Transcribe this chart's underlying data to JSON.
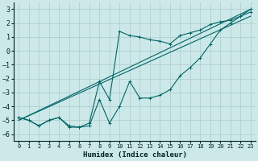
{
  "xlabel": "Humidex (Indice chaleur)",
  "xlim": [
    -0.5,
    23.5
  ],
  "ylim": [
    -6.5,
    3.5
  ],
  "yticks": [
    -6,
    -5,
    -4,
    -3,
    -2,
    -1,
    0,
    1,
    2,
    3
  ],
  "xticks": [
    0,
    1,
    2,
    3,
    4,
    5,
    6,
    7,
    8,
    9,
    10,
    11,
    12,
    13,
    14,
    15,
    16,
    17,
    18,
    19,
    20,
    21,
    22,
    23
  ],
  "bg_color": "#cce8e8",
  "grid_color": "#aacccc",
  "line_color": "#006666",
  "line1_x": [
    0,
    1,
    2,
    3,
    4,
    5,
    6,
    7,
    8,
    9,
    10,
    11,
    12,
    13,
    14,
    15,
    16,
    17,
    18,
    19,
    20,
    21,
    22,
    23
  ],
  "line1_y": [
    -4.8,
    -5.0,
    -5.4,
    -5.0,
    -4.8,
    -5.5,
    -5.5,
    -5.2,
    -2.2,
    -3.5,
    1.4,
    1.1,
    1.0,
    0.8,
    0.7,
    0.5,
    1.1,
    1.3,
    1.5,
    1.9,
    2.1,
    2.2,
    2.5,
    2.8
  ],
  "line2_x": [
    0,
    1,
    2,
    3,
    4,
    5,
    6,
    7,
    8,
    9,
    10,
    11,
    12,
    13,
    14,
    15,
    16,
    17,
    18,
    19,
    20,
    21,
    22,
    23
  ],
  "line2_y": [
    -4.8,
    -5.0,
    -5.4,
    -5.0,
    -4.8,
    -5.4,
    -5.5,
    -5.4,
    -3.5,
    -5.2,
    -4.0,
    -2.2,
    -3.4,
    -3.4,
    -3.2,
    -2.8,
    -1.8,
    -1.2,
    -0.5,
    0.5,
    1.5,
    2.0,
    2.5,
    3.0
  ],
  "line3_x": [
    0,
    23
  ],
  "line3_y": [
    -5.0,
    2.5
  ],
  "line4_x": [
    0,
    23
  ],
  "line4_y": [
    -5.0,
    3.0
  ]
}
